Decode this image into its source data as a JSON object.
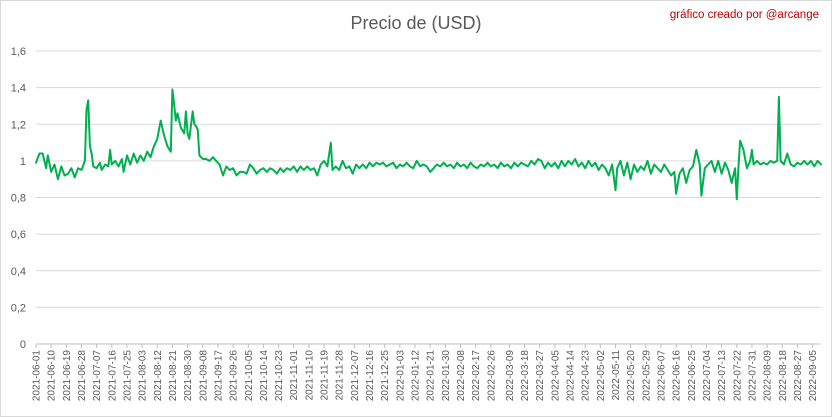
{
  "chart_data": {
    "type": "line",
    "title": "Precio de (USD)",
    "annotation": "gráfico creado por @arcange",
    "xlabel": "",
    "ylabel": "",
    "ylim": [
      0,
      1.6
    ],
    "yticks": [
      "0",
      "0,2",
      "0,4",
      "0,6",
      "0,8",
      "1",
      "1,2",
      "1,4",
      "1,6"
    ],
    "grid": true,
    "legend": "none",
    "x_start": "2021-06-01",
    "x_end": "2022-09-10",
    "xticks": [
      "2021-06-01",
      "2021-06-10",
      "2021-06-19",
      "2021-06-28",
      "2021-07-07",
      "2021-07-16",
      "2021-07-25",
      "2021-08-03",
      "2021-08-12",
      "2021-08-21",
      "2021-08-30",
      "2021-09-08",
      "2021-09-17",
      "2021-09-26",
      "2021-10-05",
      "2021-10-14",
      "2021-10-23",
      "2021-11-01",
      "2021-11-10",
      "2021-11-19",
      "2021-11-28",
      "2021-12-07",
      "2021-12-16",
      "2021-12-25",
      "2022-01-03",
      "2022-01-12",
      "2022-01-21",
      "2022-01-30",
      "2022-02-08",
      "2022-02-17",
      "2022-02-26",
      "2022-03-09",
      "2022-03-18",
      "2022-03-27",
      "2022-04-05",
      "2022-04-14",
      "2022-04-23",
      "2022-05-02",
      "2022-05-11",
      "2022-05-20",
      "2022-05-29",
      "2022-06-07",
      "2022-06-16",
      "2022-06-25",
      "2022-07-04",
      "2022-07-13",
      "2022-07-22",
      "2022-07-31",
      "2022-08-09",
      "2022-08-18",
      "2022-08-27",
      "2022-09-05"
    ],
    "series": [
      {
        "color": "#00b050",
        "points": [
          [
            "2021-06-01",
            0.99
          ],
          [
            "2021-06-03",
            1.04
          ],
          [
            "2021-06-05",
            1.04
          ],
          [
            "2021-06-07",
            0.96
          ],
          [
            "2021-06-08",
            1.03
          ],
          [
            "2021-06-10",
            0.94
          ],
          [
            "2021-06-12",
            0.98
          ],
          [
            "2021-06-14",
            0.9
          ],
          [
            "2021-06-16",
            0.97
          ],
          [
            "2021-06-18",
            0.92
          ],
          [
            "2021-06-20",
            0.93
          ],
          [
            "2021-06-22",
            0.96
          ],
          [
            "2021-06-24",
            0.91
          ],
          [
            "2021-06-26",
            0.96
          ],
          [
            "2021-06-28",
            0.95
          ],
          [
            "2021-06-30",
            1.0
          ],
          [
            "2021-07-01",
            1.28
          ],
          [
            "2021-07-02",
            1.33
          ],
          [
            "2021-07-03",
            1.08
          ],
          [
            "2021-07-04",
            1.04
          ],
          [
            "2021-07-05",
            0.97
          ],
          [
            "2021-07-07",
            0.96
          ],
          [
            "2021-07-09",
            0.99
          ],
          [
            "2021-07-10",
            0.95
          ],
          [
            "2021-07-12",
            0.98
          ],
          [
            "2021-07-14",
            0.97
          ],
          [
            "2021-07-15",
            1.06
          ],
          [
            "2021-07-16",
            0.98
          ],
          [
            "2021-07-18",
            1.0
          ],
          [
            "2021-07-20",
            0.97
          ],
          [
            "2021-07-22",
            1.01
          ],
          [
            "2021-07-23",
            0.94
          ],
          [
            "2021-07-25",
            1.03
          ],
          [
            "2021-07-27",
            0.98
          ],
          [
            "2021-07-29",
            1.04
          ],
          [
            "2021-07-31",
            0.99
          ],
          [
            "2021-08-02",
            1.03
          ],
          [
            "2021-08-04",
            1.0
          ],
          [
            "2021-08-06",
            1.05
          ],
          [
            "2021-08-08",
            1.02
          ],
          [
            "2021-08-10",
            1.08
          ],
          [
            "2021-08-12",
            1.12
          ],
          [
            "2021-08-14",
            1.22
          ],
          [
            "2021-08-16",
            1.14
          ],
          [
            "2021-08-18",
            1.08
          ],
          [
            "2021-08-20",
            1.05
          ],
          [
            "2021-08-21",
            1.39
          ],
          [
            "2021-08-22",
            1.31
          ],
          [
            "2021-08-23",
            1.22
          ],
          [
            "2021-08-24",
            1.26
          ],
          [
            "2021-08-26",
            1.18
          ],
          [
            "2021-08-28",
            1.15
          ],
          [
            "2021-08-29",
            1.27
          ],
          [
            "2021-08-30",
            1.15
          ],
          [
            "2021-08-31",
            1.12
          ],
          [
            "2021-09-02",
            1.27
          ],
          [
            "2021-09-03",
            1.2
          ],
          [
            "2021-09-04",
            1.19
          ],
          [
            "2021-09-05",
            1.17
          ],
          [
            "2021-09-06",
            1.03
          ],
          [
            "2021-09-08",
            1.01
          ],
          [
            "2021-09-10",
            1.01
          ],
          [
            "2021-09-12",
            1.0
          ],
          [
            "2021-09-14",
            1.02
          ],
          [
            "2021-09-16",
            1.0
          ],
          [
            "2021-09-18",
            0.98
          ],
          [
            "2021-09-20",
            0.92
          ],
          [
            "2021-09-22",
            0.97
          ],
          [
            "2021-09-24",
            0.95
          ],
          [
            "2021-09-26",
            0.96
          ],
          [
            "2021-09-28",
            0.92
          ],
          [
            "2021-09-30",
            0.94
          ],
          [
            "2021-10-02",
            0.94
          ],
          [
            "2021-10-04",
            0.93
          ],
          [
            "2021-10-06",
            0.98
          ],
          [
            "2021-10-08",
            0.96
          ],
          [
            "2021-10-10",
            0.93
          ],
          [
            "2021-10-12",
            0.95
          ],
          [
            "2021-10-14",
            0.96
          ],
          [
            "2021-10-16",
            0.94
          ],
          [
            "2021-10-18",
            0.96
          ],
          [
            "2021-10-20",
            0.95
          ],
          [
            "2021-10-22",
            0.93
          ],
          [
            "2021-10-24",
            0.96
          ],
          [
            "2021-10-26",
            0.94
          ],
          [
            "2021-10-28",
            0.96
          ],
          [
            "2021-10-30",
            0.95
          ],
          [
            "2021-11-01",
            0.97
          ],
          [
            "2021-11-03",
            0.94
          ],
          [
            "2021-11-05",
            0.97
          ],
          [
            "2021-11-07",
            0.95
          ],
          [
            "2021-11-09",
            0.97
          ],
          [
            "2021-11-11",
            0.95
          ],
          [
            "2021-11-13",
            0.96
          ],
          [
            "2021-11-15",
            0.92
          ],
          [
            "2021-11-17",
            0.98
          ],
          [
            "2021-11-19",
            1.0
          ],
          [
            "2021-11-21",
            0.97
          ],
          [
            "2021-11-23",
            1.1
          ],
          [
            "2021-11-24",
            0.95
          ],
          [
            "2021-11-26",
            0.97
          ],
          [
            "2021-11-28",
            0.95
          ],
          [
            "2021-11-30",
            1.0
          ],
          [
            "2021-12-02",
            0.96
          ],
          [
            "2021-12-04",
            0.97
          ],
          [
            "2021-12-06",
            0.93
          ],
          [
            "2021-12-08",
            0.98
          ],
          [
            "2021-12-10",
            0.96
          ],
          [
            "2021-12-12",
            0.98
          ],
          [
            "2021-12-14",
            0.96
          ],
          [
            "2021-12-16",
            0.99
          ],
          [
            "2021-12-18",
            0.97
          ],
          [
            "2021-12-20",
            0.99
          ],
          [
            "2021-12-22",
            0.98
          ],
          [
            "2021-12-24",
            0.99
          ],
          [
            "2021-12-26",
            0.97
          ],
          [
            "2021-12-28",
            0.98
          ],
          [
            "2021-12-30",
            0.99
          ],
          [
            "2022-01-01",
            0.96
          ],
          [
            "2022-01-03",
            0.98
          ],
          [
            "2022-01-05",
            0.97
          ],
          [
            "2022-01-07",
            0.99
          ],
          [
            "2022-01-09",
            0.97
          ],
          [
            "2022-01-11",
            0.96
          ],
          [
            "2022-01-13",
            1.0
          ],
          [
            "2022-01-15",
            0.97
          ],
          [
            "2022-01-17",
            0.98
          ],
          [
            "2022-01-19",
            0.97
          ],
          [
            "2022-01-21",
            0.94
          ],
          [
            "2022-01-23",
            0.96
          ],
          [
            "2022-01-25",
            0.98
          ],
          [
            "2022-01-27",
            0.97
          ],
          [
            "2022-01-29",
            0.99
          ],
          [
            "2022-01-31",
            0.97
          ],
          [
            "2022-02-02",
            0.98
          ],
          [
            "2022-02-04",
            0.96
          ],
          [
            "2022-02-06",
            0.99
          ],
          [
            "2022-02-08",
            0.97
          ],
          [
            "2022-02-10",
            0.98
          ],
          [
            "2022-02-12",
            0.96
          ],
          [
            "2022-02-14",
            0.99
          ],
          [
            "2022-02-16",
            0.97
          ],
          [
            "2022-02-18",
            0.96
          ],
          [
            "2022-02-20",
            0.98
          ],
          [
            "2022-02-22",
            0.97
          ],
          [
            "2022-02-24",
            0.99
          ],
          [
            "2022-02-26",
            0.97
          ],
          [
            "2022-02-28",
            0.98
          ],
          [
            "2022-03-02",
            0.96
          ],
          [
            "2022-03-04",
            0.99
          ],
          [
            "2022-03-06",
            0.97
          ],
          [
            "2022-03-08",
            0.98
          ],
          [
            "2022-03-10",
            0.96
          ],
          [
            "2022-03-12",
            0.99
          ],
          [
            "2022-03-14",
            0.97
          ],
          [
            "2022-03-16",
            0.99
          ],
          [
            "2022-03-18",
            0.98
          ],
          [
            "2022-03-20",
            0.97
          ],
          [
            "2022-03-22",
            1.0
          ],
          [
            "2022-03-24",
            0.98
          ],
          [
            "2022-03-26",
            1.01
          ],
          [
            "2022-03-28",
            1.0
          ],
          [
            "2022-03-30",
            0.96
          ],
          [
            "2022-04-01",
            0.99
          ],
          [
            "2022-04-03",
            0.97
          ],
          [
            "2022-04-05",
            0.99
          ],
          [
            "2022-04-07",
            0.96
          ],
          [
            "2022-04-09",
            1.0
          ],
          [
            "2022-04-11",
            0.97
          ],
          [
            "2022-04-13",
            1.0
          ],
          [
            "2022-04-15",
            0.98
          ],
          [
            "2022-04-17",
            1.01
          ],
          [
            "2022-04-19",
            0.97
          ],
          [
            "2022-04-21",
            0.99
          ],
          [
            "2022-04-23",
            0.96
          ],
          [
            "2022-04-25",
            1.0
          ],
          [
            "2022-04-27",
            0.97
          ],
          [
            "2022-04-29",
            0.99
          ],
          [
            "2022-05-01",
            0.95
          ],
          [
            "2022-05-03",
            0.98
          ],
          [
            "2022-05-05",
            0.96
          ],
          [
            "2022-05-07",
            0.92
          ],
          [
            "2022-05-09",
            0.98
          ],
          [
            "2022-05-11",
            0.84
          ],
          [
            "2022-05-12",
            0.96
          ],
          [
            "2022-05-14",
            1.0
          ],
          [
            "2022-05-16",
            0.92
          ],
          [
            "2022-05-18",
            0.99
          ],
          [
            "2022-05-20",
            0.9
          ],
          [
            "2022-05-22",
            0.98
          ],
          [
            "2022-05-24",
            0.94
          ],
          [
            "2022-05-26",
            0.97
          ],
          [
            "2022-05-28",
            0.95
          ],
          [
            "2022-05-30",
            1.0
          ],
          [
            "2022-06-01",
            0.93
          ],
          [
            "2022-06-03",
            0.98
          ],
          [
            "2022-06-05",
            0.96
          ],
          [
            "2022-06-07",
            0.94
          ],
          [
            "2022-06-09",
            0.98
          ],
          [
            "2022-06-11",
            0.95
          ],
          [
            "2022-06-13",
            0.92
          ],
          [
            "2022-06-15",
            0.94
          ],
          [
            "2022-06-16",
            0.82
          ],
          [
            "2022-06-18",
            0.93
          ],
          [
            "2022-06-20",
            0.96
          ],
          [
            "2022-06-22",
            0.88
          ],
          [
            "2022-06-24",
            0.95
          ],
          [
            "2022-06-26",
            0.97
          ],
          [
            "2022-06-28",
            1.06
          ],
          [
            "2022-06-30",
            0.98
          ],
          [
            "2022-07-01",
            0.81
          ],
          [
            "2022-07-03",
            0.96
          ],
          [
            "2022-07-05",
            0.98
          ],
          [
            "2022-07-07",
            1.0
          ],
          [
            "2022-07-09",
            0.94
          ],
          [
            "2022-07-11",
            1.0
          ],
          [
            "2022-07-13",
            0.93
          ],
          [
            "2022-07-15",
            0.99
          ],
          [
            "2022-07-17",
            0.95
          ],
          [
            "2022-07-19",
            0.88
          ],
          [
            "2022-07-21",
            0.96
          ],
          [
            "2022-07-22",
            0.79
          ],
          [
            "2022-07-23",
            0.97
          ],
          [
            "2022-07-24",
            1.11
          ],
          [
            "2022-07-26",
            1.06
          ],
          [
            "2022-07-28",
            0.96
          ],
          [
            "2022-07-30",
            1.0
          ],
          [
            "2022-07-31",
            1.06
          ],
          [
            "2022-08-01",
            0.98
          ],
          [
            "2022-08-03",
            1.0
          ],
          [
            "2022-08-05",
            0.98
          ],
          [
            "2022-08-07",
            0.99
          ],
          [
            "2022-08-09",
            0.98
          ],
          [
            "2022-08-11",
            1.0
          ],
          [
            "2022-08-13",
            0.99
          ],
          [
            "2022-08-15",
            1.0
          ],
          [
            "2022-08-16",
            1.35
          ],
          [
            "2022-08-17",
            1.0
          ],
          [
            "2022-08-19",
            0.98
          ],
          [
            "2022-08-21",
            1.04
          ],
          [
            "2022-08-23",
            0.98
          ],
          [
            "2022-08-25",
            0.97
          ],
          [
            "2022-08-27",
            0.99
          ],
          [
            "2022-08-29",
            0.98
          ],
          [
            "2022-08-31",
            1.0
          ],
          [
            "2022-09-02",
            0.98
          ],
          [
            "2022-09-04",
            1.0
          ],
          [
            "2022-09-06",
            0.97
          ],
          [
            "2022-09-08",
            1.0
          ],
          [
            "2022-09-10",
            0.98
          ]
        ]
      }
    ]
  }
}
